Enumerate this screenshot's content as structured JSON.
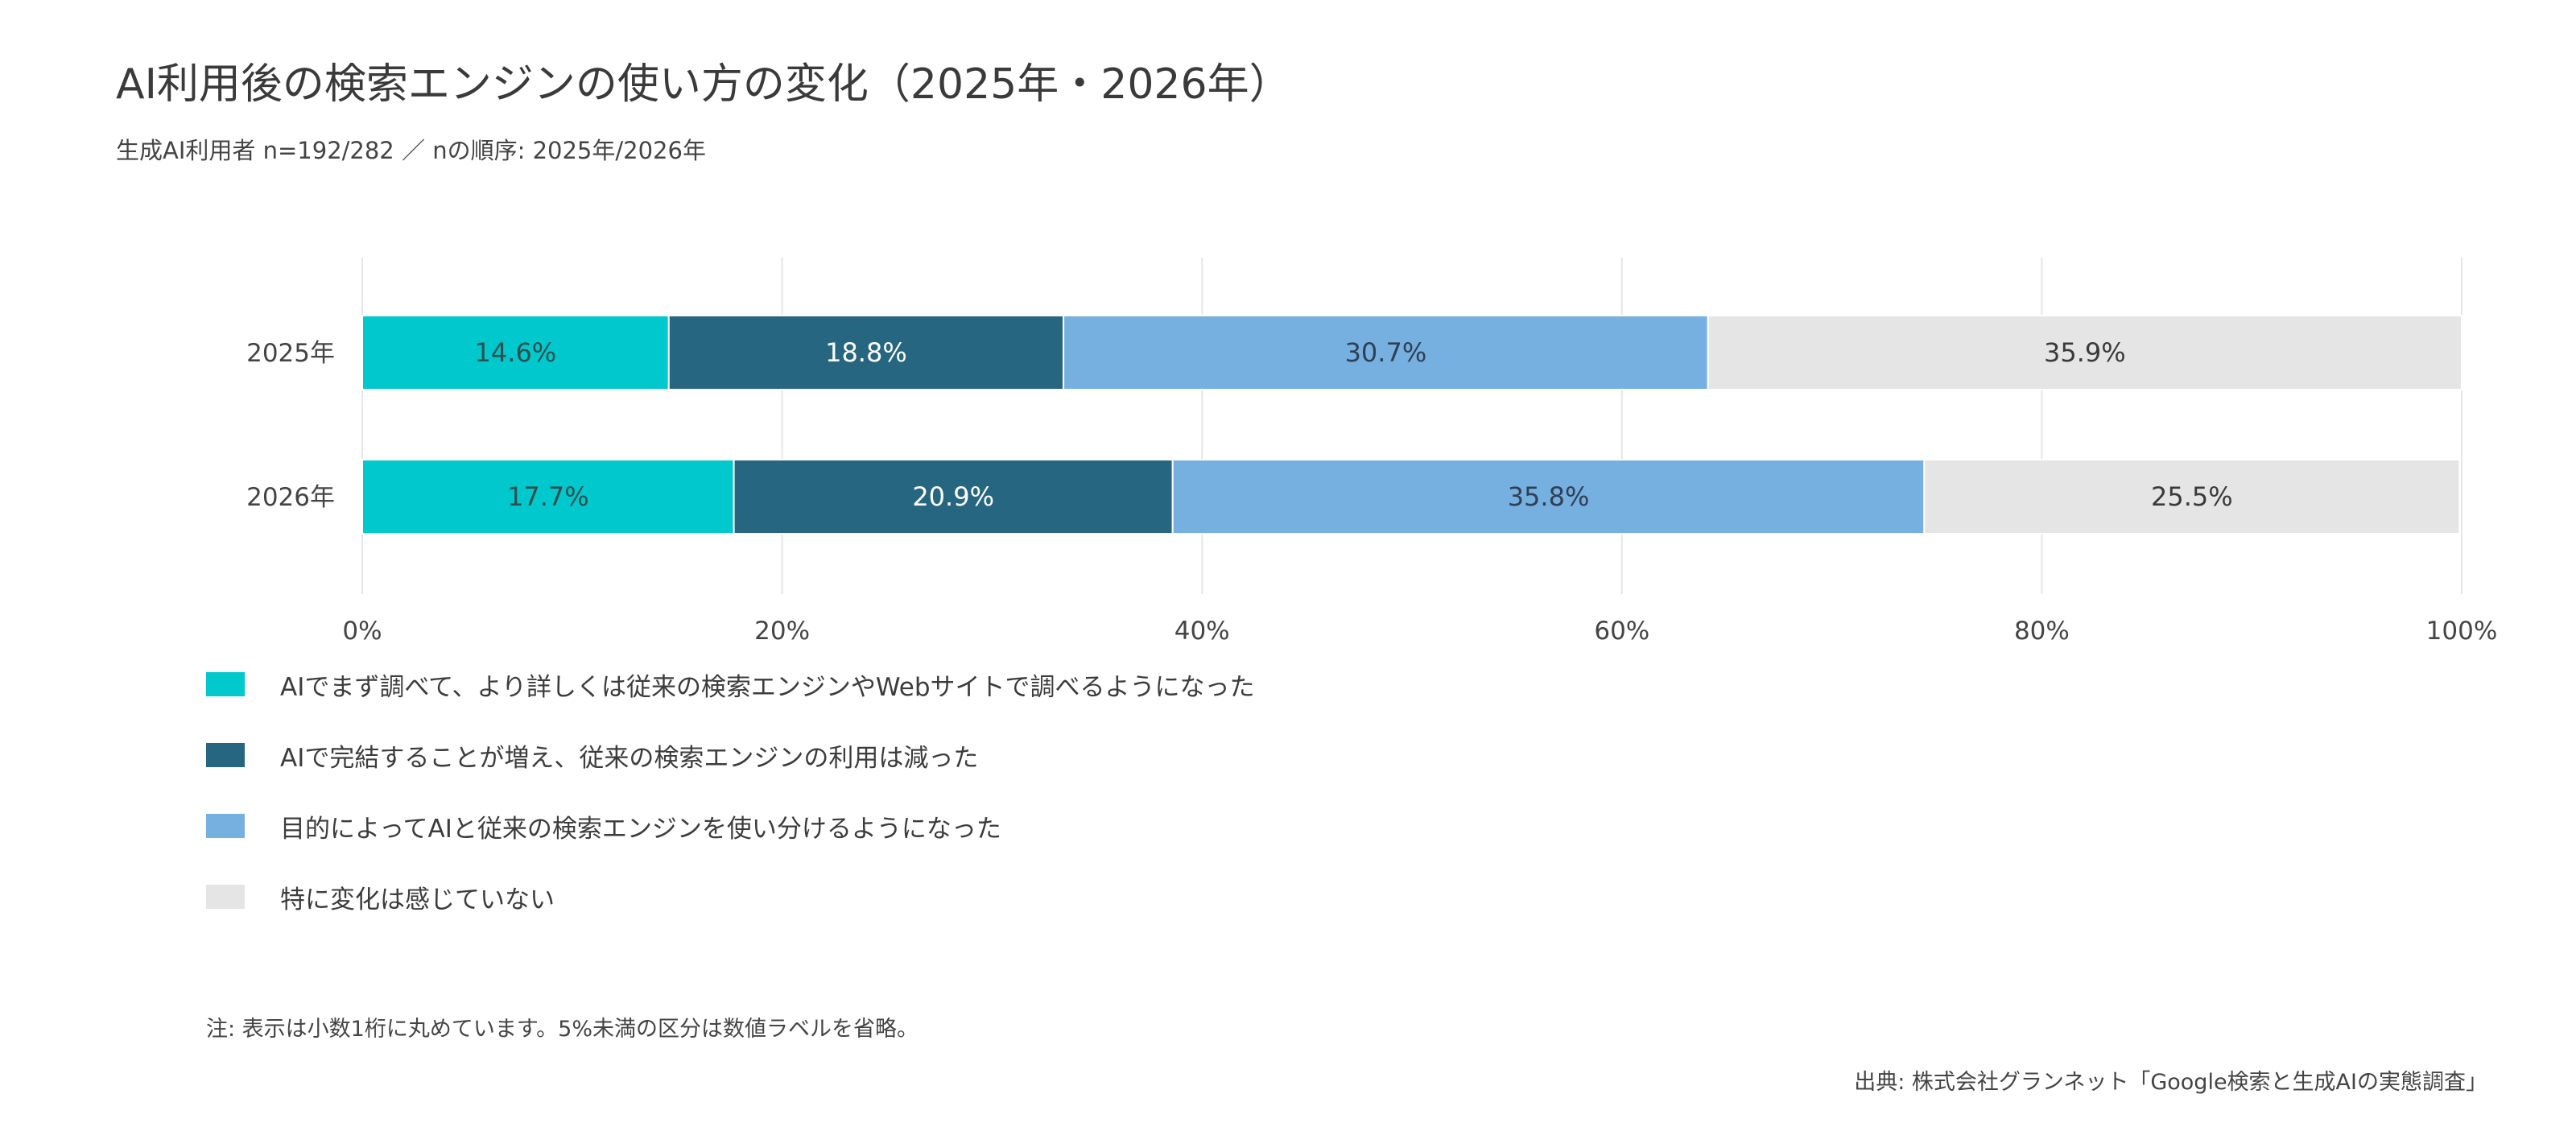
{
  "title": "AI利用後の検索エンジンの使い方の変化（2025年・2026年）",
  "subtitle": "生成AI利用者 n=192/282 ／ nの順序: 2025年/2026年",
  "note": "注: 表示は小数1桁に丸めています。5%未満の区分は数値ラベルを省略。",
  "source": "出典: 株式会社グランネット「Google検索と生成AIの実態調査」",
  "chart_data": {
    "type": "bar",
    "orientation": "horizontal",
    "stacked": true,
    "categories": [
      "2025年",
      "2026年"
    ],
    "series": [
      {
        "name": "AIでまず調べて、より詳しくは従来の検索エンジンやWebサイトで調べるようになった",
        "values": [
          14.6,
          17.7
        ],
        "labels": [
          "14.6%",
          "17.7%"
        ],
        "color": "#00c8cc",
        "label_color": "#2f4f4f"
      },
      {
        "name": "AIで完結することが増え、従来の検索エンジンの利用は減った",
        "values": [
          18.8,
          20.9
        ],
        "labels": [
          "18.8%",
          "20.9%"
        ],
        "color": "#276680",
        "label_color": "#ffffff"
      },
      {
        "name": "目的によってAIと従来の検索エンジンを使い分けるようになった",
        "values": [
          30.7,
          35.8
        ],
        "labels": [
          "30.7%",
          "35.8%"
        ],
        "color": "#76b0e0",
        "label_color": "#2f3f55"
      },
      {
        "name": "特に変化は感じていない",
        "values": [
          35.9,
          25.5
        ],
        "labels": [
          "35.9%",
          "25.5%"
        ],
        "color": "#e5e5e5",
        "label_color": "#3a3a3a"
      }
    ],
    "xlim": [
      0,
      100
    ],
    "xticks": [
      "0%",
      "20%",
      "40%",
      "60%",
      "80%",
      "100%"
    ],
    "grid": true,
    "legend_position": "bottom-left"
  }
}
